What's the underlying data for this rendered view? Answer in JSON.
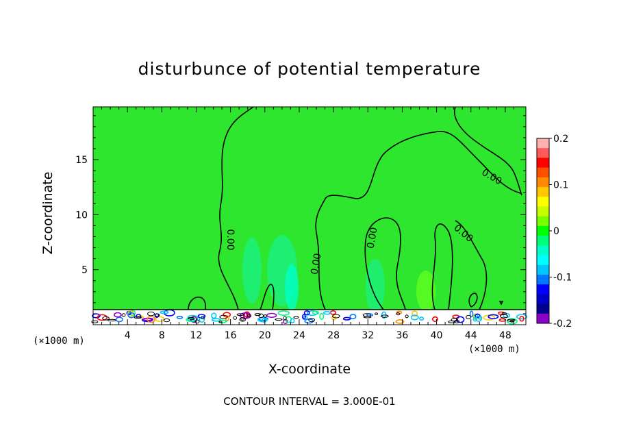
{
  "chart_data": {
    "type": "heatmap",
    "title": "disturbunce of potential temperature",
    "xlabel": "X-coordinate",
    "ylabel": "Z-coordinate",
    "x_unit_label": "(×1000 m)",
    "x_ticks": [
      4,
      8,
      12,
      16,
      20,
      24,
      28,
      32,
      36,
      40,
      44,
      48
    ],
    "y_ticks": [
      5,
      10,
      15
    ],
    "xlim": [
      0,
      50.4
    ],
    "ylim": [
      0,
      19.8
    ],
    "colorbar": {
      "range": [
        -0.2,
        0.2
      ],
      "tick_labels": [
        "0.2",
        "0.1",
        "0",
        "-0.1",
        "-0.2"
      ],
      "tick_values": [
        0.2,
        0.1,
        0,
        -0.1,
        -0.2
      ],
      "colors": [
        "#ffb0b0",
        "#ff5a5a",
        "#ff0000",
        "#ff5000",
        "#ff8c00",
        "#ffc800",
        "#ffff00",
        "#c8ff00",
        "#78ff00",
        "#00ff00",
        "#00ff78",
        "#00ffc8",
        "#00ffff",
        "#00c8ff",
        "#0078ff",
        "#0000ff",
        "#0000c8",
        "#00008c",
        "#8c00c8"
      ]
    },
    "contour_labels": [
      "0.00",
      "0.00",
      "0.00",
      "0.00",
      "0.00",
      "0.00"
    ],
    "annotation": "CONTOUR INTERVAL = 3.000E-01"
  }
}
